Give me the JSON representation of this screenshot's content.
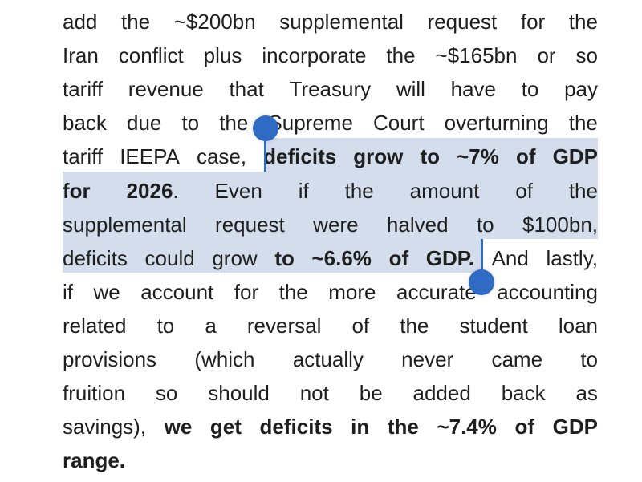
{
  "document": {
    "paragraph_lines": [
      [
        {
          "t": "add"
        },
        {
          "t": "the"
        },
        {
          "t": "~$200bn"
        },
        {
          "t": "supplemental"
        },
        {
          "t": "request"
        },
        {
          "t": "for"
        },
        {
          "t": "the"
        }
      ],
      [
        {
          "t": "Iran"
        },
        {
          "t": "conflict"
        },
        {
          "t": "plus"
        },
        {
          "t": "incorporate"
        },
        {
          "t": "the"
        },
        {
          "t": "~$165bn"
        },
        {
          "t": "or"
        },
        {
          "t": "so"
        }
      ],
      [
        {
          "t": "tariff"
        },
        {
          "t": "revenue"
        },
        {
          "t": "that"
        },
        {
          "t": "Treasury"
        },
        {
          "t": "will"
        },
        {
          "t": "have"
        },
        {
          "t": "to"
        },
        {
          "t": "pay"
        }
      ],
      [
        {
          "t": "back"
        },
        {
          "t": "due"
        },
        {
          "t": "to"
        },
        {
          "t": "the"
        },
        {
          "t": "Supreme"
        },
        {
          "t": "Court"
        },
        {
          "t": "overturning"
        },
        {
          "t": "the"
        }
      ],
      [
        {
          "t": "tariff"
        },
        {
          "t": "IEEPA"
        },
        {
          "t": "case,"
        },
        {
          "t": "deficits",
          "b": true
        },
        {
          "t": "grow",
          "b": true
        },
        {
          "t": "to",
          "b": true
        },
        {
          "t": "~7%",
          "b": true
        },
        {
          "t": "of",
          "b": true
        },
        {
          "t": "GDP",
          "b": true
        }
      ],
      [
        {
          "t": "for",
          "b": true
        },
        {
          "t": "2026",
          "b": true
        },
        {
          "t": "Even"
        },
        {
          "t": "if"
        },
        {
          "t": "the"
        },
        {
          "t": "amount"
        },
        {
          "t": "of"
        },
        {
          "t": "the"
        }
      ],
      [
        {
          "t": "supplemental"
        },
        {
          "t": "request"
        },
        {
          "t": "were"
        },
        {
          "t": "halved"
        },
        {
          "t": "to"
        },
        {
          "t": "$100bn,"
        }
      ],
      [
        {
          "t": "deficits"
        },
        {
          "t": "could"
        },
        {
          "t": "grow"
        },
        {
          "t": "to",
          "b": true
        },
        {
          "t": "~6.6%",
          "b": true
        },
        {
          "t": "of",
          "b": true
        },
        {
          "t": "GDP.",
          "b": true
        },
        {
          "t": "And"
        },
        {
          "t": "lastly,"
        }
      ],
      [
        {
          "t": "if"
        },
        {
          "t": "we"
        },
        {
          "t": "account"
        },
        {
          "t": "for"
        },
        {
          "t": "the"
        },
        {
          "t": "more"
        },
        {
          "t": "accurate"
        },
        {
          "t": "accounting"
        }
      ],
      [
        {
          "t": "related"
        },
        {
          "t": "to"
        },
        {
          "t": "a"
        },
        {
          "t": "reversal"
        },
        {
          "t": "of"
        },
        {
          "t": "the"
        },
        {
          "t": "student"
        },
        {
          "t": "loan"
        }
      ],
      [
        {
          "t": "provisions"
        },
        {
          "t": "(which"
        },
        {
          "t": "actually"
        },
        {
          "t": "never"
        },
        {
          "t": "came"
        },
        {
          "t": "to"
        }
      ],
      [
        {
          "t": "fruition"
        },
        {
          "t": "so"
        },
        {
          "t": "should"
        },
        {
          "t": "not"
        },
        {
          "t": "be"
        },
        {
          "t": "added"
        },
        {
          "t": "back"
        },
        {
          "t": "as"
        }
      ],
      [
        {
          "t": "savings),"
        },
        {
          "t": "we",
          "b": true
        },
        {
          "t": "get",
          "b": true
        },
        {
          "t": "deficits",
          "b": true
        },
        {
          "t": "in",
          "b": true
        },
        {
          "t": "the",
          "b": true
        },
        {
          "t": "~7.4%",
          "b": true
        },
        {
          "t": "of",
          "b": true
        },
        {
          "t": "GDP",
          "b": true
        }
      ],
      [
        {
          "t": "range.",
          "b": true
        }
      ]
    ],
    "line_6_period_after_2026": ".",
    "selected_text": "deficits grow to ~7% of GDP for 2026. Even if the amount of the supplemental request were halved to $100bn, deficits could grow to ~6.6% of GDP.",
    "colors": {
      "text": "#1f1f1f",
      "selection_highlight": "#d3ddeb",
      "selection_handle": "#2f6bc4"
    }
  }
}
